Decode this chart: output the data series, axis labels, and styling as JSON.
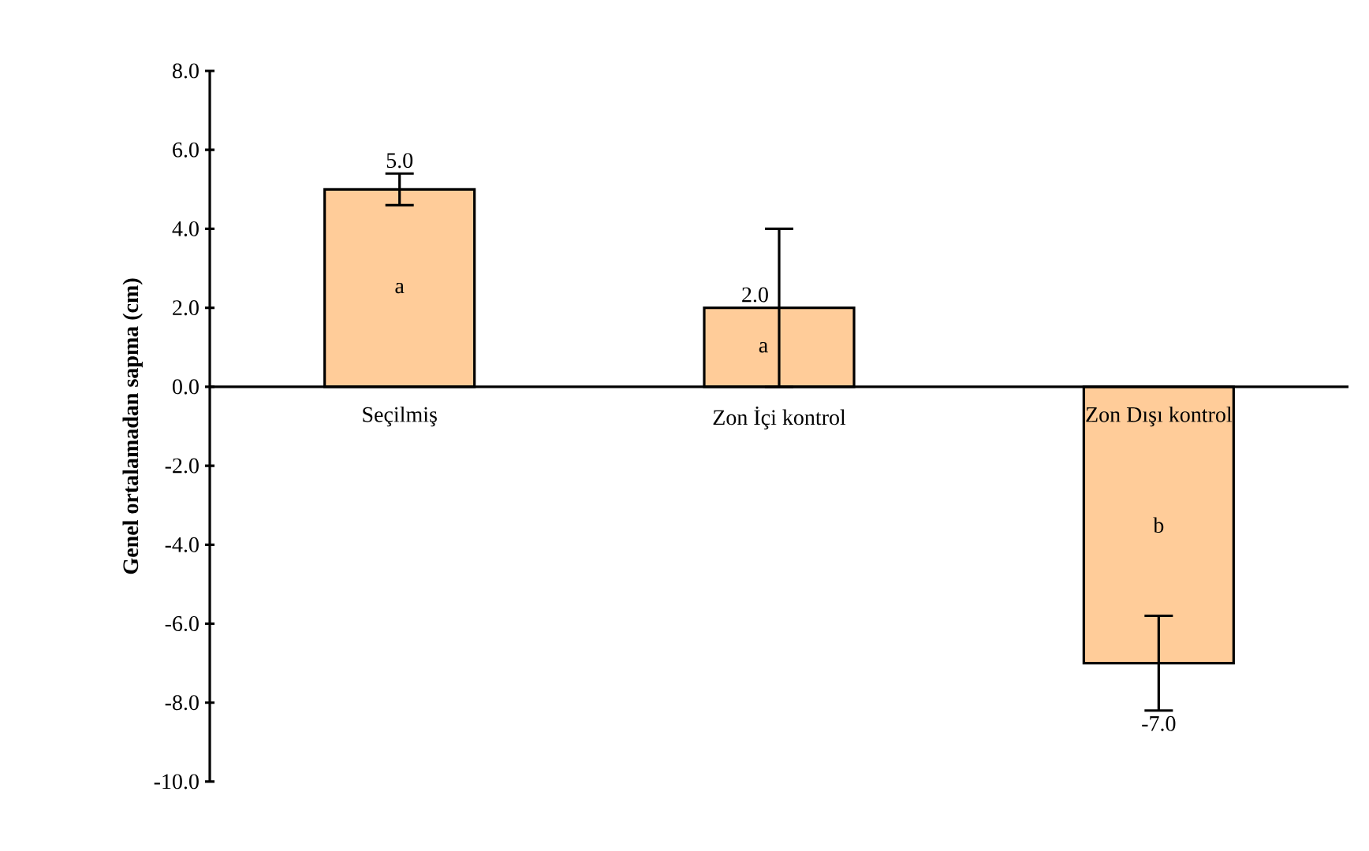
{
  "chart_data": {
    "type": "bar",
    "ylabel": "Genel ortalamadan sapma (cm)",
    "categories": [
      "Seçilmiş",
      "Zon İçi kontrol",
      "Zon Dışı kontrol"
    ],
    "values": [
      5.0,
      2.0,
      -7.0
    ],
    "color": "#ffcc99",
    "errors": [
      0.4,
      2.0,
      1.2
    ],
    "value_labels": [
      "5.0",
      "2.0",
      "-7.0"
    ],
    "ylim": [
      -10,
      8
    ],
    "yticks": [
      {
        "value": -10,
        "label": "-10.0"
      },
      {
        "value": -8,
        "label": "-8.0"
      },
      {
        "value": -6,
        "label": "-6.0"
      },
      {
        "value": -4,
        "label": "-4.0"
      },
      {
        "value": -2,
        "label": "-2.0"
      },
      {
        "value": 0,
        "label": "0.0"
      },
      {
        "value": 2,
        "label": "2.0"
      },
      {
        "value": 4,
        "label": "4.0"
      },
      {
        "value": 6,
        "label": "6.0"
      },
      {
        "value": 8,
        "label": "8.0"
      }
    ],
    "annotations": [
      "a",
      "a",
      "b"
    ],
    "grid": false
  }
}
